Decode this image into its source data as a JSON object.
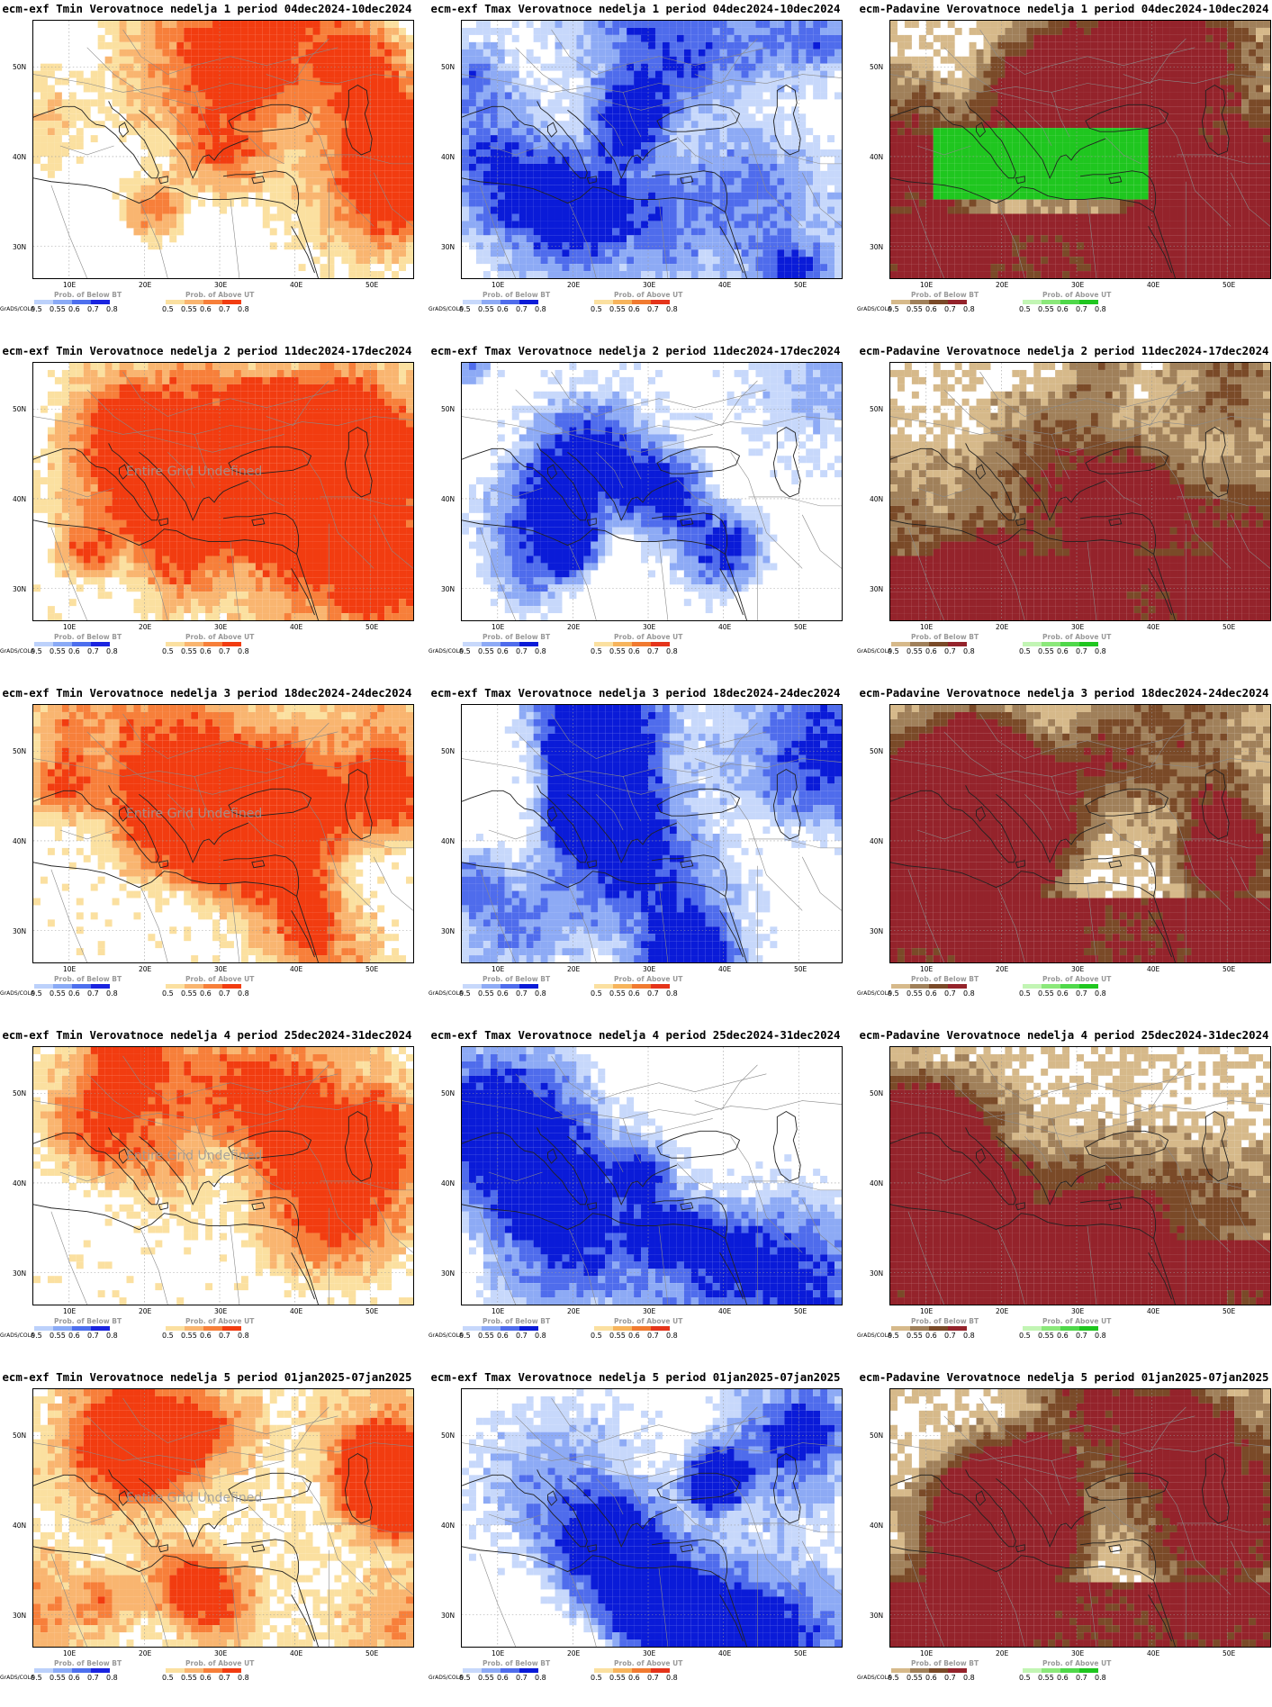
{
  "tick_labels": {
    "x": [
      "10E",
      "20E",
      "30E",
      "40E",
      "50E"
    ],
    "y": [
      "50N",
      "40N",
      "30N"
    ]
  },
  "legend": {
    "grads_label": "GrADS/COLA",
    "below_title": "Prob. of Below BT",
    "above_title": "Prob. of Above UT",
    "levels": [
      "0.5",
      "0.55",
      "0.6",
      "0.7",
      "0.8"
    ]
  },
  "overlay_text": "Entire Grid Undefined",
  "colors": {
    "tmin_above": [
      "#fbe0a0",
      "#f9b570",
      "#f77f3a",
      "#f23c10"
    ],
    "tmin_below": [
      "#bcd1fb",
      "#8aaaf6",
      "#4d6fee",
      "#1a24e0"
    ],
    "tmax_below": [
      "#c7d8fb",
      "#8daaf5",
      "#4f6cec",
      "#0a1bd8"
    ],
    "tmax_above": [
      "#fbe0a0",
      "#f7b45c",
      "#f17a30",
      "#e5341a"
    ],
    "pad_below": [
      "#d6b98a",
      "#a0805a",
      "#7a4a28",
      "#94232b"
    ],
    "pad_above": [
      "#c2f5b4",
      "#8be87a",
      "#4fd84a",
      "#1fc61f"
    ]
  },
  "panels": [
    {
      "title": "ecm-exf Tmin Verovatnoce nedelja 1 period 04dec2024-10dec2024",
      "variable": "Tmin",
      "week": 1,
      "overlay": false
    },
    {
      "title": "ecm-exf Tmax Verovatnoce nedelja 1 period 04dec2024-10dec2024",
      "variable": "Tmax",
      "week": 1,
      "overlay": false
    },
    {
      "title": "ecm-Padavine Verovatnoce nedelja 1 period 04dec2024-10dec2024",
      "variable": "Padavine",
      "week": 1,
      "overlay": false
    },
    {
      "title": "ecm-exf Tmin Verovatnoce nedelja 2 period 11dec2024-17dec2024",
      "variable": "Tmin",
      "week": 2,
      "overlay": true
    },
    {
      "title": "ecm-exf Tmax Verovatnoce nedelja 2 period 11dec2024-17dec2024",
      "variable": "Tmax",
      "week": 2,
      "overlay": false
    },
    {
      "title": "ecm-Padavine Verovatnoce nedelja 2 period 11dec2024-17dec2024",
      "variable": "Padavine",
      "week": 2,
      "overlay": false
    },
    {
      "title": "ecm-exf Tmin Verovatnoce nedelja 3 period 18dec2024-24dec2024",
      "variable": "Tmin",
      "week": 3,
      "overlay": true
    },
    {
      "title": "ecm-exf Tmax Verovatnoce nedelja 3 period 18dec2024-24dec2024",
      "variable": "Tmax",
      "week": 3,
      "overlay": false
    },
    {
      "title": "ecm-Padavine Verovatnoce nedelja 3 period 18dec2024-24dec2024",
      "variable": "Padavine",
      "week": 3,
      "overlay": false
    },
    {
      "title": "ecm-exf Tmin Verovatnoce nedelja 4 period 25dec2024-31dec2024",
      "variable": "Tmin",
      "week": 4,
      "overlay": true
    },
    {
      "title": "ecm-exf Tmax Verovatnoce nedelja 4 period 25dec2024-31dec2024",
      "variable": "Tmax",
      "week": 4,
      "overlay": false
    },
    {
      "title": "ecm-Padavine Verovatnoce nedelja 4 period 25dec2024-31dec2024",
      "variable": "Padavine",
      "week": 4,
      "overlay": false
    },
    {
      "title": "ecm-exf Tmin Verovatnoce nedelja 5 period 01jan2025-07jan2025",
      "variable": "Tmin",
      "week": 5,
      "overlay": true
    },
    {
      "title": "ecm-exf Tmax Verovatnoce nedelja 5 period 01jan2025-07jan2025",
      "variable": "Tmax",
      "week": 5,
      "overlay": false
    },
    {
      "title": "ecm-Padavine Verovatnoce nedelja 5 period 01jan2025-07jan2025",
      "variable": "Padavine",
      "week": 5,
      "overlay": false
    }
  ]
}
